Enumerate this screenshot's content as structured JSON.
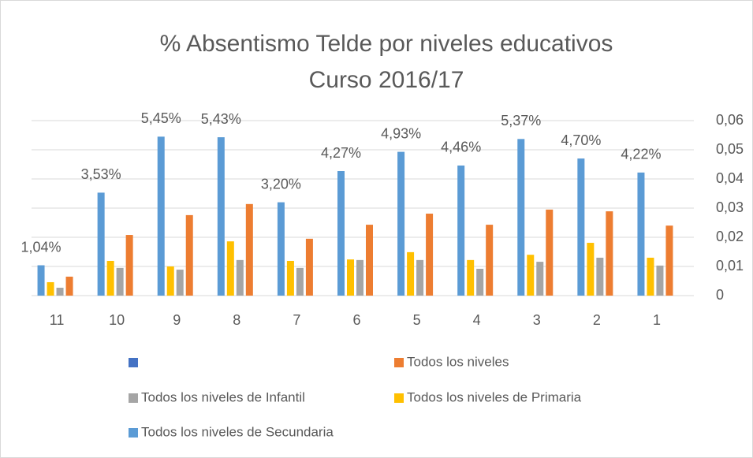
{
  "chart_data": {
    "type": "bar",
    "title": [
      "% Absentismo Telde por niveles educativos",
      "Curso 2016/17"
    ],
    "categories": [
      "11",
      "10",
      "9",
      "8",
      "7",
      "6",
      "5",
      "4",
      "3",
      "2",
      "1"
    ],
    "series": [
      {
        "name": null,
        "color": "#4472c4",
        "values": [
          null,
          null,
          null,
          null,
          null,
          null,
          null,
          null,
          null,
          null,
          null
        ]
      },
      {
        "name": "Todos los niveles",
        "color": "#ed7d31",
        "values": [
          0.0065,
          0.0208,
          0.0276,
          0.0314,
          0.0195,
          0.0243,
          0.0281,
          0.0243,
          0.0295,
          0.0289,
          0.024
        ]
      },
      {
        "name": "Todos los niveles de Infantil",
        "color": "#a5a5a5",
        "values": [
          0.0027,
          0.0095,
          0.0089,
          0.0122,
          0.0095,
          0.0122,
          0.0122,
          0.0092,
          0.0116,
          0.013,
          0.0103
        ]
      },
      {
        "name": "Todos los niveles de Primaria",
        "color": "#ffc000",
        "values": [
          0.0046,
          0.0119,
          0.01,
          0.0186,
          0.0119,
          0.0124,
          0.0149,
          0.0122,
          0.014,
          0.0181,
          0.013
        ]
      },
      {
        "name": "Todos los niveles de Secundaria",
        "color": "#5b9bd5",
        "values": [
          0.0104,
          0.0353,
          0.0545,
          0.0543,
          0.032,
          0.0427,
          0.0493,
          0.0446,
          0.0537,
          0.047,
          0.0422
        ],
        "value_labels": [
          "1,04%",
          "3,53%",
          "5,45%",
          "5,43%",
          "3,20%",
          "4,27%",
          "4,93%",
          "4,46%",
          "5,37%",
          "4,70%",
          "4,22%"
        ],
        "axis": "y2"
      }
    ],
    "y2lim": [
      0,
      0.06
    ],
    "y2ticks": [
      0,
      {
        "value": 0.01,
        "label": "0,01"
      },
      {
        "value": 0.02,
        "label": "0,02"
      },
      {
        "value": 0.03,
        "label": "0,03"
      },
      {
        "value": 0.04,
        "label": "0,04"
      },
      {
        "value": 0.05,
        "label": "0,05"
      },
      {
        "value": 0.06,
        "label": "0,06"
      }
    ],
    "grid": true,
    "legend": "bottom"
  }
}
